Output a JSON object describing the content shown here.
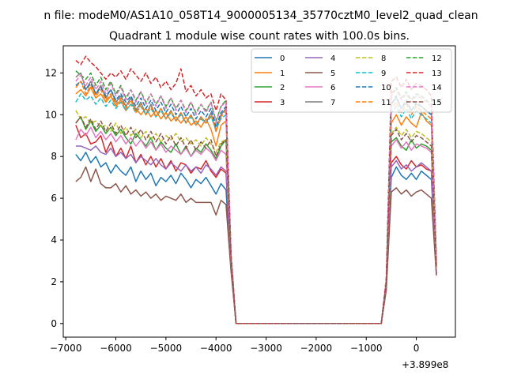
{
  "chart_data": {
    "type": "line",
    "suptitle": "n file: modeM0/AS1A10_058T14_9000005134_35770cztM0_level2_quad_clean",
    "title": "Quadrant 1 module wise count rates with 100.0s bins.",
    "xlabel": "",
    "ylabel": "",
    "offset_label": "+3.899e8",
    "xlim": [
      -7050,
      780
    ],
    "ylim": [
      -0.65,
      13.3
    ],
    "x_ticks": [
      -7000,
      -6000,
      -5000,
      -4000,
      -3000,
      -2000,
      -1000,
      0
    ],
    "x_tick_labels": [
      "−7000",
      "−6000",
      "−5000",
      "−4000",
      "−3000",
      "−2000",
      "−1000",
      "0"
    ],
    "y_ticks": [
      0,
      2,
      4,
      6,
      8,
      10,
      12
    ],
    "y_tick_labels": [
      "0",
      "2",
      "4",
      "6",
      "8",
      "10",
      "12"
    ],
    "grid": false,
    "legend": {
      "placement": "top-right",
      "columns": 4
    },
    "x": [
      -6800,
      -6700,
      -6600,
      -6500,
      -6400,
      -6300,
      -6200,
      -6100,
      -6000,
      -5900,
      -5800,
      -5700,
      -5600,
      -5500,
      -5400,
      -5300,
      -5200,
      -5100,
      -5000,
      -4900,
      -4800,
      -4700,
      -4600,
      -4500,
      -4400,
      -4300,
      -4200,
      -4100,
      -4000,
      -3900,
      -3800,
      -3700,
      -3600,
      -3500,
      -700,
      -600,
      -500,
      -400,
      -300,
      -200,
      -100,
      0,
      100,
      200,
      300,
      400
    ],
    "series": [
      {
        "name": "0",
        "color": "#1f77b4",
        "dash": "solid",
        "values": [
          8.1,
          7.8,
          8.2,
          7.7,
          8.0,
          7.5,
          7.7,
          7.2,
          7.6,
          7.3,
          7.1,
          7.5,
          6.8,
          7.3,
          6.9,
          7.2,
          6.6,
          7.0,
          6.8,
          7.1,
          6.7,
          7.2,
          6.9,
          6.5,
          6.9,
          6.7,
          7.0,
          6.6,
          6.2,
          6.7,
          6.4,
          2.8,
          0,
          0,
          0,
          1.8,
          7.0,
          7.5,
          7.1,
          6.9,
          7.2,
          6.9,
          7.3,
          7.1,
          6.9,
          2.4
        ]
      },
      {
        "name": "1",
        "color": "#ff7f0e",
        "dash": "solid",
        "values": [
          11.0,
          11.2,
          10.9,
          11.3,
          10.8,
          11.0,
          10.6,
          10.9,
          10.4,
          10.7,
          10.2,
          10.5,
          10.3,
          10.0,
          10.3,
          9.9,
          10.2,
          9.8,
          10.1,
          9.7,
          9.9,
          9.6,
          9.9,
          9.5,
          9.7,
          9.4,
          9.8,
          9.3,
          8.5,
          9.5,
          9.7,
          3.1,
          0,
          0,
          0,
          2.0,
          9.6,
          10.0,
          9.5,
          9.9,
          9.6,
          9.4,
          10.1,
          9.7,
          9.5,
          2.9
        ]
      },
      {
        "name": "2",
        "color": "#2ca02c",
        "dash": "solid",
        "values": [
          9.6,
          9.9,
          9.3,
          9.7,
          9.2,
          9.5,
          9.1,
          9.4,
          9.0,
          9.3,
          8.9,
          8.6,
          9.1,
          8.8,
          8.5,
          8.9,
          8.3,
          8.7,
          8.4,
          8.2,
          8.6,
          8.1,
          8.5,
          8.0,
          8.4,
          8.2,
          8.6,
          8.3,
          7.9,
          8.5,
          8.8,
          2.9,
          0,
          0,
          0,
          1.9,
          8.7,
          8.9,
          8.5,
          8.3,
          8.8,
          8.4,
          8.6,
          8.5,
          8.3,
          2.6
        ]
      },
      {
        "name": "3",
        "color": "#d62728",
        "dash": "solid",
        "values": [
          9.5,
          8.9,
          9.1,
          8.6,
          8.7,
          9.0,
          8.2,
          8.7,
          8.0,
          8.4,
          7.9,
          8.5,
          7.7,
          8.1,
          7.6,
          8.0,
          7.5,
          7.9,
          7.4,
          7.8,
          7.3,
          7.7,
          7.6,
          7.2,
          7.5,
          7.4,
          7.8,
          7.3,
          7.0,
          7.4,
          7.2,
          2.8,
          0,
          0,
          0,
          1.8,
          7.7,
          8.0,
          7.6,
          7.4,
          7.8,
          7.5,
          7.6,
          7.4,
          7.3,
          2.4
        ]
      },
      {
        "name": "4",
        "color": "#9467bd",
        "dash": "solid",
        "values": [
          8.5,
          8.5,
          8.4,
          8.3,
          8.5,
          8.2,
          8.1,
          8.4,
          8.0,
          8.2,
          7.9,
          8.1,
          7.7,
          8.0,
          7.8,
          7.6,
          7.9,
          7.6,
          7.4,
          7.7,
          7.5,
          7.3,
          7.6,
          7.3,
          7.5,
          7.2,
          7.6,
          7.4,
          7.1,
          7.5,
          7.3,
          2.8,
          0,
          0,
          0,
          1.8,
          7.5,
          7.8,
          7.4,
          7.6,
          7.3,
          7.5,
          7.7,
          7.5,
          7.3,
          2.4
        ]
      },
      {
        "name": "5",
        "color": "#8c564b",
        "dash": "solid",
        "values": [
          6.8,
          7.0,
          7.5,
          6.8,
          7.4,
          6.7,
          6.5,
          6.5,
          6.7,
          6.3,
          6.6,
          6.2,
          6.4,
          6.1,
          6.3,
          6.0,
          6.2,
          5.9,
          6.1,
          6.0,
          5.9,
          6.2,
          5.8,
          6.0,
          5.8,
          5.8,
          5.8,
          5.8,
          5.2,
          5.9,
          5.7,
          2.5,
          0,
          0,
          0,
          1.6,
          6.3,
          6.5,
          6.2,
          6.4,
          6.1,
          6.3,
          6.4,
          6.2,
          6.0,
          2.3
        ]
      },
      {
        "name": "6",
        "color": "#e377c2",
        "dash": "solid",
        "values": [
          8.8,
          9.3,
          9.0,
          9.4,
          8.9,
          9.2,
          8.8,
          9.1,
          8.7,
          9.0,
          8.6,
          8.9,
          8.5,
          8.8,
          8.4,
          8.7,
          8.3,
          8.6,
          8.2,
          8.5,
          8.3,
          8.1,
          8.4,
          8.0,
          8.3,
          8.1,
          8.4,
          8.2,
          7.8,
          8.3,
          8.1,
          2.9,
          0,
          0,
          0,
          1.9,
          8.5,
          8.8,
          8.4,
          8.7,
          8.3,
          8.6,
          8.5,
          8.4,
          8.2,
          2.6
        ]
      },
      {
        "name": "7",
        "color": "#7f7f7f",
        "dash": "solid",
        "values": [
          11.8,
          12.0,
          11.2,
          11.6,
          11.0,
          11.4,
          10.8,
          11.2,
          10.6,
          10.9,
          10.4,
          10.8,
          10.2,
          10.6,
          10.0,
          10.5,
          9.9,
          10.3,
          9.8,
          10.2,
          9.7,
          10.1,
          9.6,
          10.0,
          9.5,
          9.9,
          9.6,
          10.1,
          9.2,
          10.0,
          10.3,
          3.2,
          0,
          0,
          0,
          2.0,
          10.5,
          10.8,
          10.3,
          10.6,
          10.2,
          10.5,
          10.4,
          10.2,
          10.0,
          2.8
        ]
      },
      {
        "name": "8",
        "color": "#bcbd22",
        "dash": "dashed",
        "values": [
          10.2,
          9.8,
          9.9,
          9.6,
          9.7,
          9.4,
          9.5,
          9.2,
          9.6,
          9.1,
          9.4,
          9.0,
          9.3,
          8.9,
          9.2,
          8.8,
          9.1,
          8.7,
          9.0,
          8.8,
          9.1,
          8.7,
          8.9,
          8.6,
          8.8,
          8.5,
          8.9,
          8.6,
          8.2,
          8.7,
          8.8,
          3.0,
          0,
          0,
          0,
          1.9,
          9.1,
          9.4,
          9.0,
          9.3,
          8.9,
          9.2,
          9.1,
          8.9,
          8.7,
          2.7
        ]
      },
      {
        "name": "9",
        "color": "#17becf",
        "dash": "dashed",
        "values": [
          10.6,
          11.0,
          10.7,
          10.9,
          10.5,
          10.8,
          10.4,
          10.7,
          10.3,
          10.6,
          10.2,
          10.5,
          10.1,
          10.4,
          10.0,
          10.3,
          9.9,
          10.2,
          9.8,
          10.1,
          9.7,
          10.0,
          9.6,
          9.9,
          9.5,
          9.8,
          9.6,
          9.9,
          9.3,
          9.8,
          10.0,
          3.1,
          0,
          0,
          0,
          2.0,
          10.1,
          10.4,
          9.9,
          10.3,
          9.8,
          10.2,
          10.0,
          9.8,
          9.6,
          2.8
        ]
      },
      {
        "name": "10",
        "color": "#1f77b4",
        "dash": "dashed",
        "values": [
          11.4,
          11.6,
          11.2,
          11.5,
          11.0,
          11.3,
          10.9,
          11.2,
          10.7,
          11.0,
          10.6,
          10.9,
          10.4,
          10.8,
          10.3,
          10.7,
          10.2,
          10.6,
          10.1,
          10.5,
          10.0,
          10.4,
          9.9,
          10.3,
          9.8,
          10.2,
          9.9,
          10.3,
          9.4,
          10.1,
          10.4,
          3.2,
          0,
          0,
          0,
          2.0,
          10.5,
          10.9,
          10.3,
          10.7,
          10.2,
          10.6,
          10.4,
          10.2,
          10.0,
          2.9
        ]
      },
      {
        "name": "11",
        "color": "#ff7f0e",
        "dash": "dashed",
        "values": [
          11.3,
          11.6,
          11.0,
          11.4,
          10.9,
          11.2,
          10.7,
          11.0,
          10.5,
          10.8,
          10.3,
          10.7,
          10.1,
          10.5,
          10.0,
          10.4,
          9.9,
          10.3,
          9.8,
          10.2,
          9.7,
          10.1,
          9.6,
          10.0,
          9.5,
          9.9,
          9.6,
          10.0,
          9.2,
          9.9,
          10.2,
          3.1,
          0,
          0,
          0,
          2.0,
          10.3,
          10.6,
          10.1,
          10.5,
          10.0,
          10.4,
          10.2,
          10.0,
          9.8,
          2.8
        ]
      },
      {
        "name": "12",
        "color": "#2ca02c",
        "dash": "dashed",
        "values": [
          12.1,
          11.9,
          11.7,
          12.0,
          11.4,
          11.8,
          11.2,
          11.6,
          11.0,
          11.4,
          10.8,
          11.2,
          10.7,
          11.1,
          10.6,
          11.0,
          10.5,
          10.9,
          10.4,
          10.8,
          10.3,
          10.7,
          10.2,
          10.6,
          10.1,
          10.5,
          10.2,
          10.6,
          9.7,
          10.4,
          10.7,
          3.3,
          0,
          0,
          0,
          2.1,
          11.0,
          11.3,
          10.8,
          11.1,
          10.7,
          11.0,
          10.9,
          10.7,
          10.5,
          3.0
        ]
      },
      {
        "name": "13",
        "color": "#d62728",
        "dash": "dashed",
        "values": [
          12.6,
          12.4,
          12.8,
          12.5,
          12.3,
          12.0,
          11.7,
          12.0,
          11.8,
          12.1,
          11.7,
          12.2,
          11.9,
          11.6,
          12.0,
          11.5,
          11.8,
          11.3,
          11.6,
          11.2,
          11.5,
          12.2,
          11.1,
          11.4,
          10.9,
          11.2,
          10.8,
          11.0,
          10.2,
          11.0,
          10.7,
          3.4,
          0,
          0,
          0,
          2.2,
          11.6,
          11.8,
          11.3,
          11.7,
          11.2,
          11.5,
          11.4,
          11.2,
          10.9,
          3.1
        ]
      },
      {
        "name": "14",
        "color": "#e377c2",
        "dash": "dashed",
        "values": [
          11.6,
          11.9,
          11.4,
          11.8,
          11.2,
          11.6,
          11.0,
          11.5,
          10.9,
          11.3,
          10.7,
          11.2,
          10.6,
          11.1,
          10.5,
          11.0,
          10.4,
          10.9,
          10.3,
          10.8,
          10.2,
          10.7,
          10.1,
          10.6,
          10.0,
          10.5,
          10.1,
          10.6,
          9.6,
          10.4,
          10.6,
          3.3,
          0,
          0,
          0,
          2.1,
          10.9,
          11.2,
          10.7,
          11.0,
          10.6,
          10.9,
          10.8,
          10.6,
          10.4,
          3.0
        ]
      },
      {
        "name": "15",
        "color": "#8c564b",
        "dash": "dashed",
        "values": [
          9.6,
          9.9,
          9.4,
          9.8,
          9.3,
          9.7,
          9.2,
          9.6,
          9.1,
          9.5,
          9.0,
          9.4,
          8.9,
          9.3,
          8.8,
          9.2,
          8.7,
          9.1,
          8.6,
          9.0,
          8.5,
          8.9,
          8.4,
          8.8,
          8.3,
          8.7,
          8.4,
          8.8,
          8.0,
          8.6,
          8.8,
          3.0,
          0,
          0,
          0,
          1.9,
          9.0,
          9.3,
          8.8,
          9.1,
          8.7,
          9.0,
          8.9,
          8.7,
          8.5,
          2.7
        ]
      }
    ]
  }
}
